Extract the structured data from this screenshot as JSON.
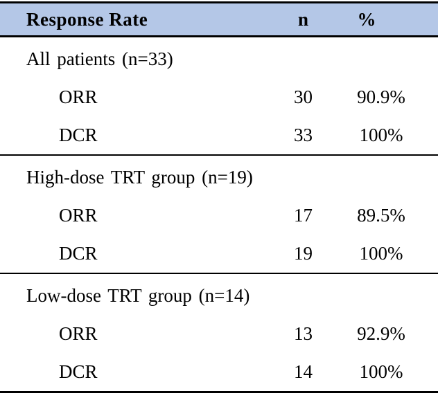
{
  "table": {
    "title_note": "Response rate summary table",
    "colors": {
      "header_background": "#b4c7e7",
      "rule": "#000000",
      "text": "#000000",
      "page_background": "#ffffff"
    },
    "header": {
      "col_label": "Response Rate",
      "col_n": "n",
      "col_pct": "%"
    },
    "sections": [
      {
        "label": "All patients (n=33)",
        "rows": [
          {
            "name": "ORR",
            "n": "30",
            "pct": "90.9%"
          },
          {
            "name": "DCR",
            "n": "33",
            "pct": "100%"
          }
        ]
      },
      {
        "label": "High-dose TRT group (n=19)",
        "rows": [
          {
            "name": "ORR",
            "n": "17",
            "pct": "89.5%"
          },
          {
            "name": "DCR",
            "n": "19",
            "pct": "100%"
          }
        ]
      },
      {
        "label": "Low-dose TRT group (n=14)",
        "rows": [
          {
            "name": "ORR",
            "n": "13",
            "pct": "92.9%"
          },
          {
            "name": "DCR",
            "n": "14",
            "pct": "100%"
          }
        ]
      }
    ]
  }
}
